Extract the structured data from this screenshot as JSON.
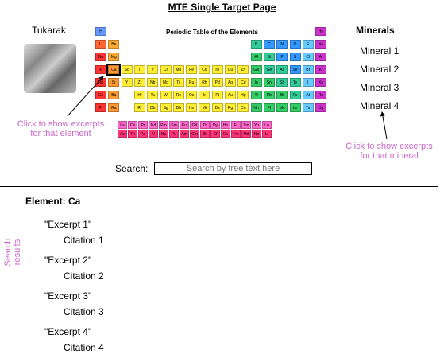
{
  "page_title": "MTE Single Target Page",
  "target_name": "Tukarak",
  "periodic_table": {
    "title": "Periodic Table of the Elements",
    "selected": "Ca",
    "elements": [
      {
        "s": "H",
        "r": 1,
        "c": 1,
        "col": "#6699ff"
      },
      {
        "s": "He",
        "r": 1,
        "c": 18,
        "col": "#cc33cc"
      },
      {
        "s": "Li",
        "r": 2,
        "c": 1,
        "col": "#ff6633"
      },
      {
        "s": "Be",
        "r": 2,
        "c": 2,
        "col": "#ffaa33"
      },
      {
        "s": "B",
        "r": 2,
        "c": 13,
        "col": "#33cc99"
      },
      {
        "s": "C",
        "r": 2,
        "c": 14,
        "col": "#3399ff"
      },
      {
        "s": "N",
        "r": 2,
        "c": 15,
        "col": "#3399ff"
      },
      {
        "s": "O",
        "r": 2,
        "c": 16,
        "col": "#3399ff"
      },
      {
        "s": "F",
        "r": 2,
        "c": 17,
        "col": "#66ccff"
      },
      {
        "s": "Ne",
        "r": 2,
        "c": 18,
        "col": "#cc33cc"
      },
      {
        "s": "Na",
        "r": 3,
        "c": 1,
        "col": "#ff3333"
      },
      {
        "s": "Mg",
        "r": 3,
        "c": 2,
        "col": "#ffaa33"
      },
      {
        "s": "Al",
        "r": 3,
        "c": 13,
        "col": "#33cc66"
      },
      {
        "s": "Si",
        "r": 3,
        "c": 14,
        "col": "#33cc99"
      },
      {
        "s": "P",
        "r": 3,
        "c": 15,
        "col": "#3399ff"
      },
      {
        "s": "S",
        "r": 3,
        "c": 16,
        "col": "#3399ff"
      },
      {
        "s": "Cl",
        "r": 3,
        "c": 17,
        "col": "#66ccff"
      },
      {
        "s": "Ar",
        "r": 3,
        "c": 18,
        "col": "#cc33cc"
      },
      {
        "s": "K",
        "r": 4,
        "c": 1,
        "col": "#ff3333"
      },
      {
        "s": "Ca",
        "r": 4,
        "c": 2,
        "col": "#ff9933"
      },
      {
        "s": "Sc",
        "r": 4,
        "c": 3,
        "col": "#ffee33"
      },
      {
        "s": "Ti",
        "r": 4,
        "c": 4,
        "col": "#ffee33"
      },
      {
        "s": "V",
        "r": 4,
        "c": 5,
        "col": "#ffee33"
      },
      {
        "s": "Cr",
        "r": 4,
        "c": 6,
        "col": "#ffee33"
      },
      {
        "s": "Mn",
        "r": 4,
        "c": 7,
        "col": "#ffee33"
      },
      {
        "s": "Fe",
        "r": 4,
        "c": 8,
        "col": "#ffee33"
      },
      {
        "s": "Co",
        "r": 4,
        "c": 9,
        "col": "#ffee33"
      },
      {
        "s": "Ni",
        "r": 4,
        "c": 10,
        "col": "#ffee33"
      },
      {
        "s": "Cu",
        "r": 4,
        "c": 11,
        "col": "#ffee33"
      },
      {
        "s": "Zn",
        "r": 4,
        "c": 12,
        "col": "#ffee33"
      },
      {
        "s": "Ga",
        "r": 4,
        "c": 13,
        "col": "#33cc66"
      },
      {
        "s": "Ge",
        "r": 4,
        "c": 14,
        "col": "#33cc99"
      },
      {
        "s": "As",
        "r": 4,
        "c": 15,
        "col": "#33cc99"
      },
      {
        "s": "Se",
        "r": 4,
        "c": 16,
        "col": "#3399ff"
      },
      {
        "s": "Br",
        "r": 4,
        "c": 17,
        "col": "#66ccff"
      },
      {
        "s": "Kr",
        "r": 4,
        "c": 18,
        "col": "#cc33cc"
      },
      {
        "s": "Rb",
        "r": 5,
        "c": 1,
        "col": "#ff3333"
      },
      {
        "s": "Sr",
        "r": 5,
        "c": 2,
        "col": "#ff9933"
      },
      {
        "s": "Y",
        "r": 5,
        "c": 3,
        "col": "#ffee33"
      },
      {
        "s": "Zr",
        "r": 5,
        "c": 4,
        "col": "#ffee33"
      },
      {
        "s": "Nb",
        "r": 5,
        "c": 5,
        "col": "#ffee33"
      },
      {
        "s": "Mo",
        "r": 5,
        "c": 6,
        "col": "#ffee33"
      },
      {
        "s": "Tc",
        "r": 5,
        "c": 7,
        "col": "#ffee33"
      },
      {
        "s": "Ru",
        "r": 5,
        "c": 8,
        "col": "#ffee33"
      },
      {
        "s": "Rh",
        "r": 5,
        "c": 9,
        "col": "#ffee33"
      },
      {
        "s": "Pd",
        "r": 5,
        "c": 10,
        "col": "#ffee33"
      },
      {
        "s": "Ag",
        "r": 5,
        "c": 11,
        "col": "#ffee33"
      },
      {
        "s": "Cd",
        "r": 5,
        "c": 12,
        "col": "#ffee33"
      },
      {
        "s": "In",
        "r": 5,
        "c": 13,
        "col": "#33cc66"
      },
      {
        "s": "Sn",
        "r": 5,
        "c": 14,
        "col": "#33cc66"
      },
      {
        "s": "Sb",
        "r": 5,
        "c": 15,
        "col": "#33cc99"
      },
      {
        "s": "Te",
        "r": 5,
        "c": 16,
        "col": "#33cc99"
      },
      {
        "s": "I",
        "r": 5,
        "c": 17,
        "col": "#66ccff"
      },
      {
        "s": "Xe",
        "r": 5,
        "c": 18,
        "col": "#cc33cc"
      },
      {
        "s": "Cs",
        "r": 6,
        "c": 1,
        "col": "#ff3333"
      },
      {
        "s": "Ba",
        "r": 6,
        "c": 2,
        "col": "#ff9933"
      },
      {
        "s": "Hf",
        "r": 6,
        "c": 4,
        "col": "#ffee33"
      },
      {
        "s": "Ta",
        "r": 6,
        "c": 5,
        "col": "#ffee33"
      },
      {
        "s": "W",
        "r": 6,
        "c": 6,
        "col": "#ffee33"
      },
      {
        "s": "Re",
        "r": 6,
        "c": 7,
        "col": "#ffee33"
      },
      {
        "s": "Os",
        "r": 6,
        "c": 8,
        "col": "#ffee33"
      },
      {
        "s": "Ir",
        "r": 6,
        "c": 9,
        "col": "#ffee33"
      },
      {
        "s": "Pt",
        "r": 6,
        "c": 10,
        "col": "#ffee33"
      },
      {
        "s": "Au",
        "r": 6,
        "c": 11,
        "col": "#ffee33"
      },
      {
        "s": "Hg",
        "r": 6,
        "c": 12,
        "col": "#ffee33"
      },
      {
        "s": "Tl",
        "r": 6,
        "c": 13,
        "col": "#33cc66"
      },
      {
        "s": "Pb",
        "r": 6,
        "c": 14,
        "col": "#33cc66"
      },
      {
        "s": "Bi",
        "r": 6,
        "c": 15,
        "col": "#33cc66"
      },
      {
        "s": "Po",
        "r": 6,
        "c": 16,
        "col": "#33cc99"
      },
      {
        "s": "At",
        "r": 6,
        "c": 17,
        "col": "#66ccff"
      },
      {
        "s": "Rn",
        "r": 6,
        "c": 18,
        "col": "#cc33cc"
      },
      {
        "s": "Fr",
        "r": 7,
        "c": 1,
        "col": "#ff3333"
      },
      {
        "s": "Ra",
        "r": 7,
        "c": 2,
        "col": "#ff9933"
      },
      {
        "s": "Rf",
        "r": 7,
        "c": 4,
        "col": "#ffee33"
      },
      {
        "s": "Db",
        "r": 7,
        "c": 5,
        "col": "#ffee33"
      },
      {
        "s": "Sg",
        "r": 7,
        "c": 6,
        "col": "#ffee33"
      },
      {
        "s": "Bh",
        "r": 7,
        "c": 7,
        "col": "#ffee33"
      },
      {
        "s": "Hs",
        "r": 7,
        "c": 8,
        "col": "#ffee33"
      },
      {
        "s": "Mt",
        "r": 7,
        "c": 9,
        "col": "#ffee33"
      },
      {
        "s": "Ds",
        "r": 7,
        "c": 10,
        "col": "#ffee33"
      },
      {
        "s": "Rg",
        "r": 7,
        "c": 11,
        "col": "#ffee33"
      },
      {
        "s": "Cn",
        "r": 7,
        "c": 12,
        "col": "#ffee33"
      },
      {
        "s": "Nh",
        "r": 7,
        "c": 13,
        "col": "#33cc66"
      },
      {
        "s": "Fl",
        "r": 7,
        "c": 14,
        "col": "#33cc66"
      },
      {
        "s": "Mc",
        "r": 7,
        "c": 15,
        "col": "#33cc66"
      },
      {
        "s": "Lv",
        "r": 7,
        "c": 16,
        "col": "#33cc66"
      },
      {
        "s": "Ts",
        "r": 7,
        "c": 17,
        "col": "#66ccff"
      },
      {
        "s": "Og",
        "r": 7,
        "c": 18,
        "col": "#cc33cc"
      },
      {
        "s": "La",
        "r": 8,
        "c": 4,
        "col": "#ff66cc"
      },
      {
        "s": "Ce",
        "r": 8,
        "c": 5,
        "col": "#ff66cc"
      },
      {
        "s": "Pr",
        "r": 8,
        "c": 6,
        "col": "#ff66cc"
      },
      {
        "s": "Nd",
        "r": 8,
        "c": 7,
        "col": "#ff66cc"
      },
      {
        "s": "Pm",
        "r": 8,
        "c": 8,
        "col": "#ff66cc"
      },
      {
        "s": "Sm",
        "r": 8,
        "c": 9,
        "col": "#ff66cc"
      },
      {
        "s": "Eu",
        "r": 8,
        "c": 10,
        "col": "#ff66cc"
      },
      {
        "s": "Gd",
        "r": 8,
        "c": 11,
        "col": "#ff66cc"
      },
      {
        "s": "Tb",
        "r": 8,
        "c": 12,
        "col": "#ff66cc"
      },
      {
        "s": "Dy",
        "r": 8,
        "c": 13,
        "col": "#ff66cc"
      },
      {
        "s": "Ho",
        "r": 8,
        "c": 14,
        "col": "#ff66cc"
      },
      {
        "s": "Er",
        "r": 8,
        "c": 15,
        "col": "#ff66cc"
      },
      {
        "s": "Tm",
        "r": 8,
        "c": 16,
        "col": "#ff66cc"
      },
      {
        "s": "Yb",
        "r": 8,
        "c": 17,
        "col": "#ff66cc"
      },
      {
        "s": "Lu",
        "r": 8,
        "c": 18,
        "col": "#ff66cc"
      },
      {
        "s": "Ac",
        "r": 9,
        "c": 4,
        "col": "#ff3377"
      },
      {
        "s": "Th",
        "r": 9,
        "c": 5,
        "col": "#ff3377"
      },
      {
        "s": "Pa",
        "r": 9,
        "c": 6,
        "col": "#ff3377"
      },
      {
        "s": "U",
        "r": 9,
        "c": 7,
        "col": "#ff3377"
      },
      {
        "s": "Np",
        "r": 9,
        "c": 8,
        "col": "#ff3377"
      },
      {
        "s": "Pu",
        "r": 9,
        "c": 9,
        "col": "#ff3377"
      },
      {
        "s": "Am",
        "r": 9,
        "c": 10,
        "col": "#ff3377"
      },
      {
        "s": "Cm",
        "r": 9,
        "c": 11,
        "col": "#ff3377"
      },
      {
        "s": "Bk",
        "r": 9,
        "c": 12,
        "col": "#ff3377"
      },
      {
        "s": "Cf",
        "r": 9,
        "c": 13,
        "col": "#ff3377"
      },
      {
        "s": "Es",
        "r": 9,
        "c": 14,
        "col": "#ff3377"
      },
      {
        "s": "Fm",
        "r": 9,
        "c": 15,
        "col": "#ff3377"
      },
      {
        "s": "Md",
        "r": 9,
        "c": 16,
        "col": "#ff3377"
      },
      {
        "s": "No",
        "r": 9,
        "c": 17,
        "col": "#ff3377"
      },
      {
        "s": "Lr",
        "r": 9,
        "c": 18,
        "col": "#ff3377"
      }
    ]
  },
  "minerals": {
    "heading": "Minerals",
    "items": [
      "Mineral 1",
      "Mineral 2",
      "Mineral 3",
      "Mineral 4"
    ]
  },
  "annotations": {
    "element_hint": "Click to show excerpts\nfor that element",
    "mineral_hint": "Click to show excerpts\nfor that mineral",
    "color": "#cc66cc"
  },
  "search": {
    "label": "Search:",
    "placeholder": "Search by free text here"
  },
  "results": {
    "element_heading": "Element: Ca",
    "side_label": "Search results",
    "items": [
      {
        "excerpt": "\"Excerpt 1\"",
        "citation": "Citation 1"
      },
      {
        "excerpt": "\"Excerpt 2\"",
        "citation": "Citation 2"
      },
      {
        "excerpt": "\"Excerpt 3\"",
        "citation": "Citation 3"
      },
      {
        "excerpt": "\"Excerpt 4\"",
        "citation": "Citation 4"
      }
    ]
  }
}
